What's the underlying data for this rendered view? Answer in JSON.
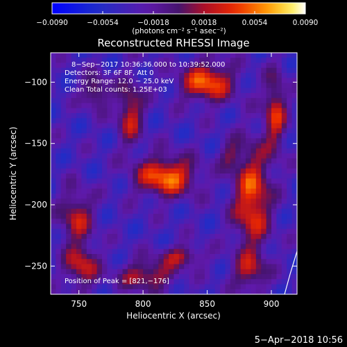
{
  "chart_data": {
    "type": "heatmap",
    "title": "Reconstructed RHESSI Image",
    "xlabel": "Heliocentric X (arcsec)",
    "ylabel": "Heliocentric Y (arcsec)",
    "xlim": [
      728,
      920
    ],
    "ylim": [
      -273,
      -76
    ],
    "x_ticks": [
      750,
      800,
      850,
      900
    ],
    "x_tick_labels": [
      "750",
      "800",
      "850",
      "900"
    ],
    "y_ticks": [
      -100,
      -150,
      -200,
      -250
    ],
    "y_tick_labels": [
      "−100",
      "−150",
      "−200",
      "−250"
    ],
    "colorbar": {
      "range": [
        -0.009,
        0.009
      ],
      "ticks": [
        -0.009,
        -0.0054,
        -0.0018,
        0.0018,
        0.0054,
        0.009
      ],
      "tick_labels": [
        "−0.0090",
        "−0.0054",
        "−0.0018",
        "0.0018",
        "0.0054",
        "0.0090"
      ],
      "unit_label": "(photons cm⁻² s⁻¹ asec⁻²)",
      "colormap": "blue-purple-red-orange-yellow-white"
    },
    "annotations": [
      "8−Sep−2017 10:36:36.000 to 10:39:52.000",
      "Detectors: 3F 6F 8F, Att 0",
      "Energy Range: 12.0 − 25.0 keV",
      "Clean     Total counts: 1.25E+03"
    ],
    "peak_label": "Position of Peak = [821,−176]",
    "peak_position": [
      821,
      -176
    ],
    "sources": [
      {
        "x": 850,
        "y": -100,
        "peak": 0.0085,
        "sx": 14,
        "sy": 11
      },
      {
        "x": 818,
        "y": -177,
        "peak": 0.009,
        "sx": 16,
        "sy": 11
      },
      {
        "x": 790,
        "y": -125,
        "peak": 0.0062,
        "sx": 7,
        "sy": 18
      },
      {
        "x": 763,
        "y": -108,
        "peak": 0.0055,
        "sx": 7,
        "sy": 9
      },
      {
        "x": 748,
        "y": -210,
        "peak": 0.0058,
        "sx": 9,
        "sy": 15
      },
      {
        "x": 752,
        "y": -250,
        "peak": 0.0062,
        "sx": 9,
        "sy": 12
      },
      {
        "x": 830,
        "y": -242,
        "peak": 0.0052,
        "sx": 12,
        "sy": 6
      },
      {
        "x": 803,
        "y": -258,
        "peak": 0.006,
        "sx": 15,
        "sy": 8
      },
      {
        "x": 885,
        "y": -195,
        "peak": 0.008,
        "sx": 10,
        "sy": 30
      },
      {
        "x": 903,
        "y": -125,
        "peak": 0.0065,
        "sx": 6,
        "sy": 22
      },
      {
        "x": 883,
        "y": -255,
        "peak": 0.005,
        "sx": 9,
        "sy": 10
      },
      {
        "x": 868,
        "y": -160,
        "peak": 0.0035,
        "sx": 6,
        "sy": 8
      }
    ],
    "grid": false,
    "legend": "none"
  },
  "footer": {
    "timestamp": "5−Apr−2018 10:56"
  }
}
